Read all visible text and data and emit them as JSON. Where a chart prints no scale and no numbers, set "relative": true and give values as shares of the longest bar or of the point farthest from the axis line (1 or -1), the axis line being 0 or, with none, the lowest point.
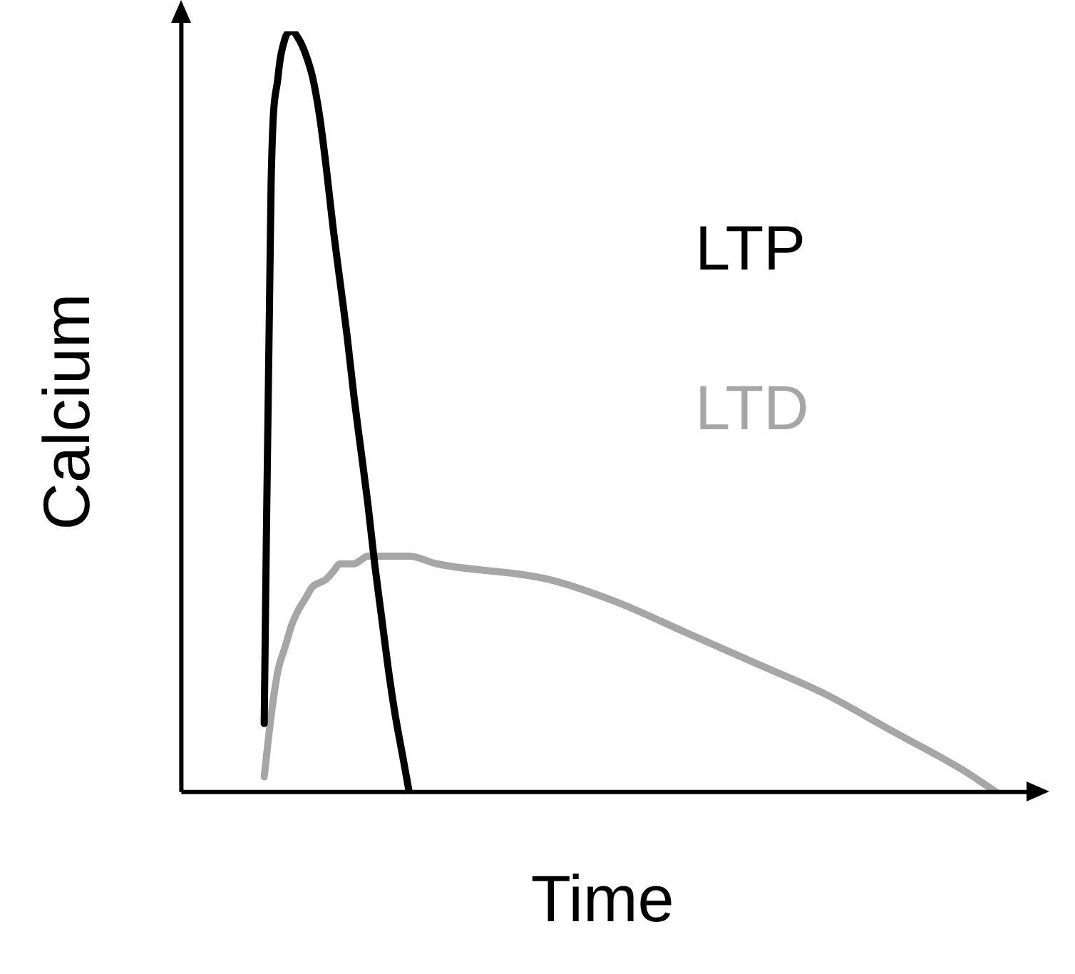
{
  "chart_data": {
    "type": "line",
    "relative": true,
    "xlabel": "Time",
    "ylabel": "Calcium",
    "grid": false,
    "marker": "none",
    "line_style": "solid",
    "categories": [
      null,
      null,
      null,
      null,
      null,
      null,
      null,
      null,
      null,
      null,
      null,
      null,
      null,
      null,
      null,
      null,
      null,
      null,
      null,
      null,
      null,
      null,
      null,
      null,
      null,
      null,
      null,
      null,
      null,
      null,
      null,
      null,
      null,
      null,
      null,
      null,
      null,
      null,
      null,
      null,
      null,
      null,
      null,
      null,
      null,
      null,
      null,
      null,
      null,
      null,
      null,
      null,
      null,
      null,
      null,
      null,
      null,
      null,
      null,
      null,
      null,
      null,
      null,
      null,
      null,
      null,
      null,
      null,
      null,
      null,
      null,
      null,
      null,
      null,
      null,
      null,
      null,
      null,
      null,
      null,
      null,
      null,
      null,
      null,
      null,
      null,
      null,
      null,
      null,
      null,
      null,
      null,
      null,
      null,
      null,
      null,
      null,
      null,
      null,
      null,
      null,
      null,
      null,
      null,
      null,
      null,
      null,
      null,
      null,
      null,
      null,
      null,
      null,
      null,
      null,
      null,
      null,
      null,
      null,
      null,
      null,
      null,
      null
    ],
    "series": [
      {
        "name": "LTP",
        "color": "#000000",
        "values": [
          null,
          null,
          null,
          null,
          null,
          null,
          null,
          null,
          null,
          null,
          null,
          null,
          0.09,
          0.8,
          0.94,
          0.99,
          1,
          0.99,
          0.97,
          0.94,
          0.89,
          0.82,
          0.74,
          0.67,
          0.6,
          0.52,
          0.45,
          0.38,
          0.3,
          0.23,
          0.16,
          0.1,
          0.05,
          0,
          null,
          null,
          null,
          null,
          null,
          null,
          null,
          null,
          null,
          null,
          null,
          null,
          null,
          null,
          null,
          null,
          null,
          null,
          null,
          null,
          null,
          null,
          null,
          null,
          null,
          null,
          null,
          null,
          null,
          null,
          null,
          null,
          null,
          null,
          null,
          null,
          null,
          null,
          null,
          null,
          null,
          null,
          null,
          null,
          null,
          null,
          null,
          null,
          null,
          null,
          null,
          null,
          null,
          null,
          null,
          null,
          null,
          null,
          null,
          null,
          null,
          null,
          null,
          null,
          null,
          null,
          null,
          null,
          null,
          null,
          null,
          null,
          null,
          null,
          null,
          null,
          null,
          null,
          null,
          null,
          null,
          null,
          null,
          null,
          null,
          null,
          null,
          null,
          null
        ]
      },
      {
        "name": "LTD",
        "color": "#a6a6a6",
        "values": [
          null,
          null,
          null,
          null,
          null,
          null,
          null,
          null,
          null,
          null,
          null,
          null,
          0.02,
          0.1,
          0.16,
          0.19,
          0.22,
          0.24,
          0.255,
          0.27,
          0.275,
          0.28,
          0.29,
          0.3,
          0.3,
          0.3,
          0.305,
          0.31,
          0.31,
          0.31,
          0.31,
          0.31,
          0.31,
          0.31,
          null,
          null,
          null,
          0.3,
          null,
          null,
          null,
          null,
          null,
          null,
          null,
          null,
          null,
          null,
          null,
          null,
          null,
          null,
          null,
          0.28,
          null,
          null,
          null,
          null,
          null,
          null,
          null,
          null,
          null,
          0.25,
          null,
          null,
          null,
          null,
          null,
          null,
          null,
          null,
          null,
          0.21,
          null,
          null,
          null,
          null,
          null,
          null,
          null,
          null,
          null,
          0.17,
          null,
          null,
          null,
          null,
          null,
          null,
          null,
          null,
          null,
          0.13,
          null,
          null,
          null,
          null,
          null,
          null,
          null,
          null,
          null,
          0.08,
          null,
          null,
          null,
          null,
          null,
          null,
          null,
          null,
          null,
          0.03,
          null,
          null,
          null,
          null,
          0,
          null,
          null,
          null,
          null
        ]
      }
    ]
  }
}
